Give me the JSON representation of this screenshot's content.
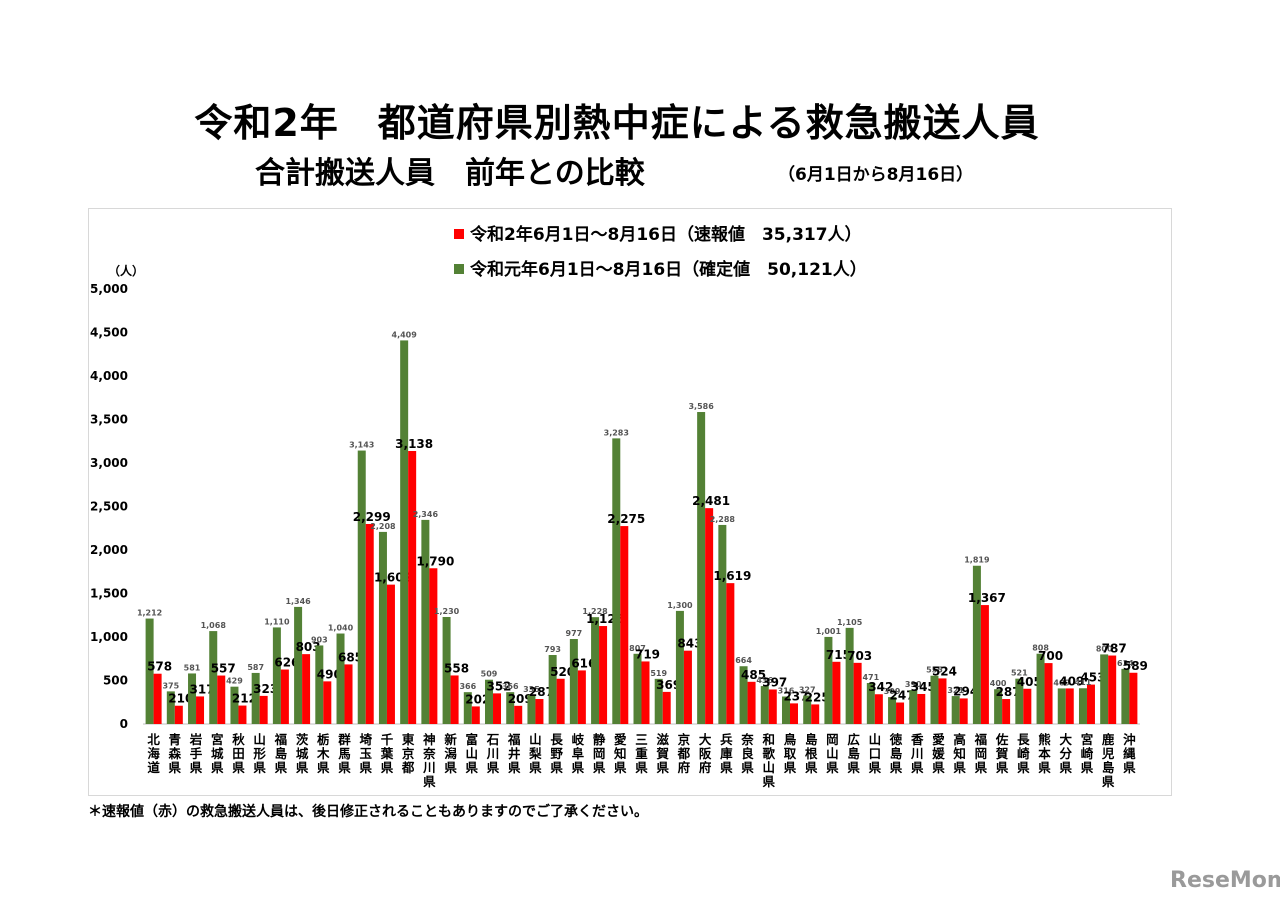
{
  "title_main": "令和2年　都道府県別熱中症による救急搬送人員",
  "title_sub": "合計搬送人員　前年との比較",
  "title_period": "（6月1日から8月16日）",
  "unit_label": "（人）",
  "footnote": "＊速報値（赤）の救急搬送人員は、後日修正されることもありますのでご了承ください。",
  "watermark": "ReseMom",
  "colors": {
    "current": "#ff0000",
    "previous": "#538135"
  },
  "chart_data": {
    "type": "bar",
    "title": "令和2年　都道府県別熱中症による救急搬送人員",
    "subtitle": "合計搬送人員　前年との比較　（6月1日から8月16日）",
    "ylabel": "（人）",
    "ylim": [
      0,
      5000
    ],
    "yticks": [
      "0",
      "500",
      "1,000",
      "1,500",
      "2,000",
      "2,500",
      "3,000",
      "3,500",
      "4,000",
      "4,500",
      "5,000"
    ],
    "legend_position": "top",
    "grid": false,
    "categories": [
      "北海道",
      "青森県",
      "岩手県",
      "宮城県",
      "秋田県",
      "山形県",
      "福島県",
      "茨城県",
      "栃木県",
      "群馬県",
      "埼玉県",
      "千葉県",
      "東京都",
      "神奈川県",
      "新潟県",
      "富山県",
      "石川県",
      "福井県",
      "山梨県",
      "長野県",
      "岐阜県",
      "静岡県",
      "愛知県",
      "三重県",
      "滋賀県",
      "京都府",
      "大阪府",
      "兵庫県",
      "奈良県",
      "和歌山県",
      "鳥取県",
      "島根県",
      "岡山県",
      "広島県",
      "山口県",
      "徳島県",
      "香川県",
      "愛媛県",
      "高知県",
      "福岡県",
      "佐賀県",
      "長崎県",
      "熊本県",
      "大分県",
      "宮崎県",
      "鹿児島県",
      "沖縄県"
    ],
    "series": [
      {
        "name": "令和元年6月1日～8月16日（確定値　50,121人）",
        "key": "previous",
        "values": [
          1212,
          375,
          581,
          1068,
          429,
          587,
          1110,
          1346,
          903,
          1040,
          3143,
          2208,
          4409,
          2346,
          1230,
          366,
          509,
          366,
          335,
          793,
          977,
          1228,
          3283,
          807,
          519,
          1300,
          3586,
          2288,
          664,
          436,
          316,
          327,
          1001,
          1105,
          471,
          309,
          390,
          555,
          321,
          1819,
          400,
          521,
          808,
          409,
          411,
          800,
          634
        ],
        "labels": [
          "1,212",
          "375",
          "581",
          "1,068",
          "429",
          "587",
          "1,110",
          "1,346",
          "903",
          "1,040",
          "3,143",
          "2,208",
          "4,409",
          "2,346",
          "1,230",
          "366",
          "509",
          "366",
          "335",
          "793",
          "977",
          "1,228",
          "3,283",
          "807",
          "519",
          "1,300",
          "3,586",
          "2,288",
          "664",
          "436",
          "316",
          "327",
          "1,001",
          "1,105",
          "471",
          "309",
          "390",
          "555",
          "321",
          "1,819",
          "400",
          "521",
          "808",
          "409",
          "411",
          "800",
          "634"
        ]
      },
      {
        "name": "令和2年6月1日～8月16日（速報値　35,317人）",
        "key": "current",
        "values": [
          578,
          210,
          317,
          557,
          212,
          323,
          626,
          803,
          490,
          685,
          2299,
          1602,
          3138,
          1790,
          558,
          202,
          352,
          209,
          287,
          520,
          616,
          1126,
          2275,
          719,
          369,
          843,
          2481,
          1619,
          485,
          397,
          237,
          225,
          715,
          703,
          342,
          247,
          345,
          524,
          294,
          1367,
          287,
          405,
          700,
          409,
          453,
          787,
          589
        ],
        "labels": [
          "578",
          "210",
          "317",
          "557",
          "212",
          "323",
          "626",
          "803",
          "490",
          "685",
          "2,299",
          "1,602",
          "3,138",
          "1,790",
          "558",
          "202",
          "352",
          "209",
          "287",
          "520",
          "616",
          "1,126",
          "2,275",
          "719",
          "369",
          "843",
          "2,481",
          "1,619",
          "485",
          "397",
          "237",
          "225",
          "715",
          "703",
          "342",
          "247",
          "345",
          "524",
          "294",
          "1,367",
          "287",
          "405",
          "700",
          "409",
          "453",
          "787",
          "589"
        ]
      }
    ]
  }
}
